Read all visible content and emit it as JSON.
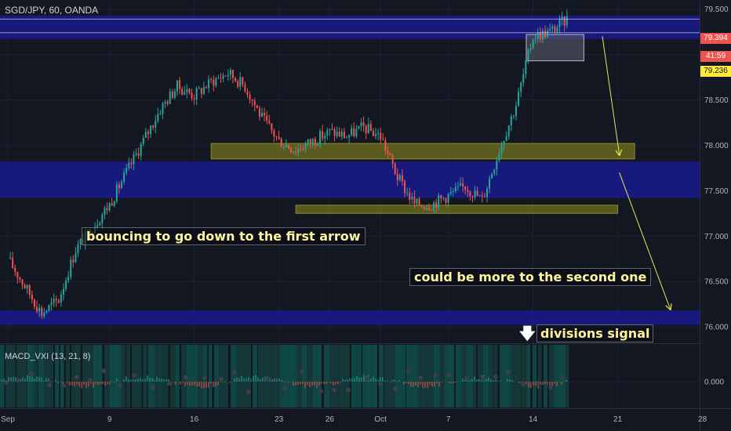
{
  "header": {
    "symbol": "SGD/JPY, 60, OANDA"
  },
  "indicator": {
    "title": "MACD_VXI (13, 21, 8)"
  },
  "price_tags": {
    "current_price": "79.394",
    "countdown": "41:59",
    "level_price": "79.236"
  },
  "annotations": {
    "note1": "bouncing to go down to the first arrow",
    "note2": "could be more to the second one",
    "note3": "divisions signal"
  },
  "colors": {
    "background": "#131722",
    "up_candle": "#26a69a",
    "down_candle": "#ef5350",
    "zone_blue": "#1a1a8c",
    "zone_yellow": "#6b6b1e",
    "arrow": "#e6e65a",
    "current_price_tag": "#ef5350",
    "level_tag": "#ffeb3b"
  },
  "chart_data": [
    {
      "type": "candlestick",
      "title": "SGD/JPY, 60, OANDA",
      "xlabel": "",
      "ylabel": "",
      "x_ticks": [
        "Sep",
        "9",
        "16",
        "23",
        "26",
        "Oct",
        "7",
        "14",
        "21",
        "28"
      ],
      "y_ticks": [
        76.0,
        76.5,
        77.0,
        77.5,
        78.0,
        78.5,
        79.0,
        79.5
      ],
      "ylim": [
        75.82,
        79.6
      ],
      "grid": true,
      "close_path": [
        [
          "Sep 1",
          76.75
        ],
        [
          "Sep 2",
          76.45
        ],
        [
          "Sep 3",
          76.15
        ],
        [
          "Sep 4",
          76.3
        ],
        [
          "Sep 5",
          76.85
        ],
        [
          "Sep 6",
          77.1
        ],
        [
          "Sep 9",
          77.35
        ],
        [
          "Sep 10",
          77.7
        ],
        [
          "Sep 11",
          78.05
        ],
        [
          "Sep 12",
          78.4
        ],
        [
          "Sep 13",
          78.65
        ],
        [
          "Sep 16",
          78.55
        ],
        [
          "Sep 17",
          78.7
        ],
        [
          "Sep 18",
          78.8
        ],
        [
          "Sep 19",
          78.65
        ],
        [
          "Sep 20",
          78.3
        ],
        [
          "Sep 23",
          78.05
        ],
        [
          "Sep 24",
          77.95
        ],
        [
          "Sep 25",
          78.05
        ],
        [
          "Sep 26",
          78.15
        ],
        [
          "Sep 27",
          78.1
        ],
        [
          "Sep 30",
          78.2
        ],
        [
          "Oct 1",
          78.1
        ],
        [
          "Oct 2",
          77.65
        ],
        [
          "Oct 3",
          77.35
        ],
        [
          "Oct 4",
          77.35
        ],
        [
          "Oct 7",
          77.45
        ],
        [
          "Oct 8",
          77.55
        ],
        [
          "Oct 9",
          77.4
        ],
        [
          "Oct 10",
          77.95
        ],
        [
          "Oct 11",
          78.45
        ],
        [
          "Oct 14",
          79.2
        ],
        [
          "Oct 15",
          79.25
        ],
        [
          "Oct 16",
          79.39
        ]
      ],
      "candle_colors": {
        "up": "#26a69a",
        "down": "#ef5350"
      },
      "horizontal_lines": [
        79.39,
        79.24
      ],
      "zones": [
        {
          "kind": "resistance",
          "from": 79.17,
          "to": 79.43,
          "color": "#1a1a8c"
        },
        {
          "kind": "resistance",
          "from": 77.42,
          "to": 77.82,
          "color": "#1a1a8c"
        },
        {
          "kind": "support",
          "from": 76.02,
          "to": 76.18,
          "color": "#1a1a8c"
        },
        {
          "kind": "rectangle",
          "from": 77.85,
          "to": 78.02,
          "start": "Sep 17",
          "end": "Oct 22",
          "color": "#6b6b1e"
        },
        {
          "kind": "rectangle",
          "from": 77.25,
          "to": 77.34,
          "start": "Sep 24",
          "end": "Oct 19",
          "color": "#6b6b1e"
        },
        {
          "kind": "rectangle",
          "from": 78.93,
          "to": 79.22,
          "start": "Oct 12",
          "end": "Oct 17",
          "color": "#5d6270"
        }
      ],
      "projection_arrows": [
        {
          "from": [
            "Oct 18",
            79.2
          ],
          "to": [
            "Oct 21",
            77.9
          ]
        },
        {
          "from": [
            "Oct 21",
            77.7
          ],
          "to": [
            "Oct 24",
            76.2
          ]
        }
      ]
    },
    {
      "type": "histogram",
      "title": "MACD_VXI (13, 21, 8)",
      "y_ticks": [
        0.0
      ],
      "grid": true
    }
  ]
}
